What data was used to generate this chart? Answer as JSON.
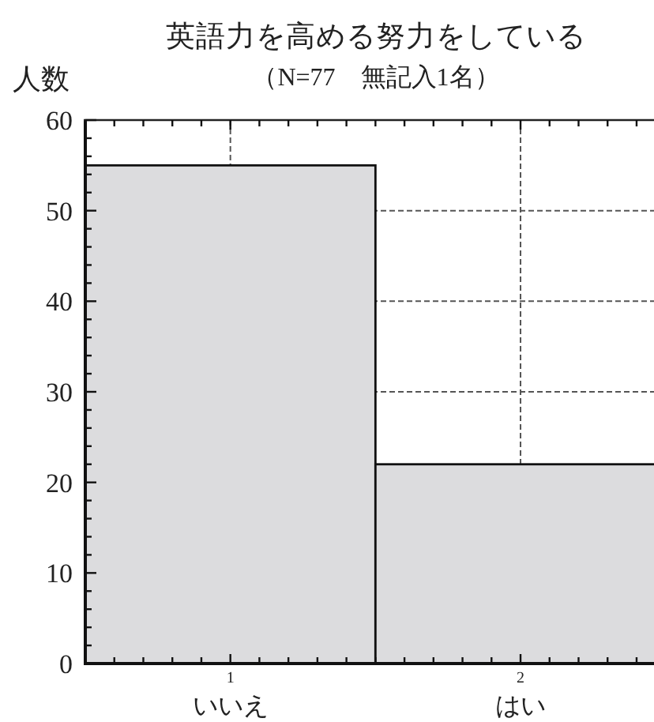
{
  "chart_data": {
    "type": "bar",
    "title": "英語力を高める努力をしている",
    "subtitle": "（N=77　無記入1名）",
    "ylabel": "人数",
    "x": [
      1,
      2
    ],
    "values": [
      55,
      22
    ],
    "color": "#dcdcde",
    "xlim": [
      0.5,
      2.46
    ],
    "xticks": [
      {
        "value": 0.6,
        "label": null
      },
      {
        "value": 0.7,
        "label": null
      },
      {
        "value": 0.8,
        "label": null
      },
      {
        "value": 0.9,
        "label": null
      },
      1,
      {
        "value": 1.1,
        "label": null
      },
      {
        "value": 1.2,
        "label": null
      },
      {
        "value": 1.3,
        "label": null
      },
      {
        "value": 1.4,
        "label": null
      },
      {
        "value": 1.5,
        "label": null
      },
      {
        "value": 1.6,
        "label": null
      },
      {
        "value": 1.7,
        "label": null
      },
      {
        "value": 1.8,
        "label": null
      },
      {
        "value": 1.9,
        "label": null
      },
      2,
      {
        "value": 2.1,
        "label": null
      },
      {
        "value": 2.2,
        "label": null
      },
      {
        "value": 2.3,
        "label": null
      },
      {
        "value": 2.4,
        "label": null
      }
    ],
    "ylim": [
      0,
      60
    ],
    "yticks": [
      0,
      {
        "value": 2,
        "label": null
      },
      {
        "value": 4,
        "label": null
      },
      {
        "value": 6,
        "label": null
      },
      {
        "value": 8,
        "label": null
      },
      10,
      {
        "value": 12,
        "label": null
      },
      {
        "value": 14,
        "label": null
      },
      {
        "value": 16,
        "label": null
      },
      {
        "value": 18,
        "label": null
      },
      20,
      {
        "value": 22,
        "label": null
      },
      {
        "value": 24,
        "label": null
      },
      {
        "value": 26,
        "label": null
      },
      {
        "value": 28,
        "label": null
      },
      30,
      {
        "value": 32,
        "label": null
      },
      {
        "value": 34,
        "label": null
      },
      {
        "value": 36,
        "label": null
      },
      {
        "value": 38,
        "label": null
      },
      40,
      {
        "value": 42,
        "label": null
      },
      {
        "value": 44,
        "label": null
      },
      {
        "value": 46,
        "label": null
      },
      {
        "value": 48,
        "label": null
      },
      50,
      {
        "value": 52,
        "label": null
      },
      {
        "value": 54,
        "label": null
      },
      {
        "value": 56,
        "label": null
      },
      {
        "value": 58,
        "label": null
      },
      60
    ],
    "grid": true,
    "annotations": [
      "いいえ",
      "はい"
    ]
  }
}
